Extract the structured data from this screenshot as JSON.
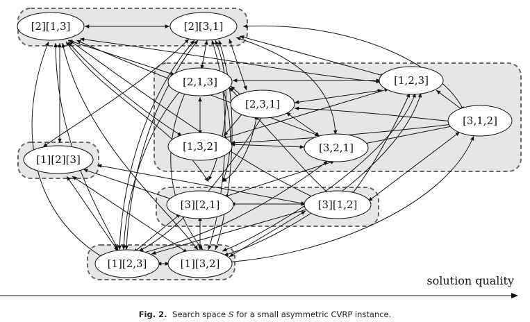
{
  "nodes": {
    "n_2_13": "[2][1,3]",
    "n_2_31": "[2][3,1]",
    "n_213": "[2,1,3]",
    "n_231": "[2,3,1]",
    "n_123": "[1,2,3]",
    "n_312": "[3,1,2]",
    "n_132": "[1,3,2]",
    "n_321": "[3,2,1]",
    "n_1_2_3": "[1][2][3]",
    "n_3_21": "[3][2,1]",
    "n_3_12": "[3][1,2]",
    "n_1_23": "[1][2,3]",
    "n_1_32": "[1][3,2]"
  },
  "axis": {
    "label": "solution quality"
  },
  "caption": {
    "figure_label": "Fig. 2.",
    "text_before": "Search space",
    "symbol": "S",
    "text_after": "for a small asymmetric CVRP instance."
  }
}
